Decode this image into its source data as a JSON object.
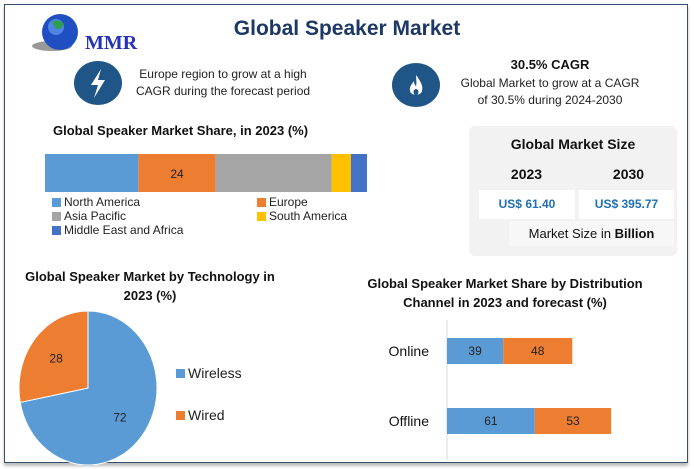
{
  "title": "Global Speaker Market",
  "logo": {
    "text": "MMR"
  },
  "highlights": [
    {
      "icon": "lightning-icon",
      "text_line1": "Europe region to grow at a high",
      "text_line2": "CAGR during the forecast period"
    },
    {
      "icon": "flame-icon",
      "heading": "30.5% CAGR",
      "text_line1": "Global Market to grow at a CAGR",
      "text_line2": "of 30.5% during 2024-2030"
    }
  ],
  "market_size": {
    "title": "Global Market Size",
    "years": [
      "2023",
      "2030"
    ],
    "values": [
      "US$ 61.40",
      "US$ 395.77"
    ],
    "note_prefix": "Market Size in ",
    "note_bold": "Billion"
  },
  "colors": {
    "blue": "#5b9bd5",
    "orange": "#ed7d31",
    "gray": "#a5a5a5",
    "yellow": "#ffc000",
    "darkblue": "#4472c4",
    "title": "#1d3864"
  },
  "chart_data": [
    {
      "type": "bar",
      "orientation": "horizontal-stacked",
      "title": "Global Speaker Market Share, in 2023 (%)",
      "categories": [
        "North America",
        "Europe",
        "Asia Pacific",
        "South America",
        "Middle East and Africa"
      ],
      "values": [
        29,
        24,
        36,
        6,
        5
      ],
      "labels_shown": [
        "",
        "24",
        "",
        "",
        ""
      ],
      "legend": "bottom"
    },
    {
      "type": "pie",
      "title_line1": "Global Speaker Market by Technology in",
      "title_line2": "2023 (%)",
      "categories": [
        "Wireless",
        "Wired"
      ],
      "values": [
        72,
        28
      ],
      "legend": "right"
    },
    {
      "type": "bar",
      "orientation": "horizontal-stacked",
      "title_line1": "Global Speaker Market Share by Distribution",
      "title_line2": "Channel in 2023 and forecast (%)",
      "categories": [
        "Online",
        "Offline"
      ],
      "series": [
        {
          "values": [
            39,
            61
          ]
        },
        {
          "values": [
            48,
            53
          ]
        }
      ]
    }
  ]
}
